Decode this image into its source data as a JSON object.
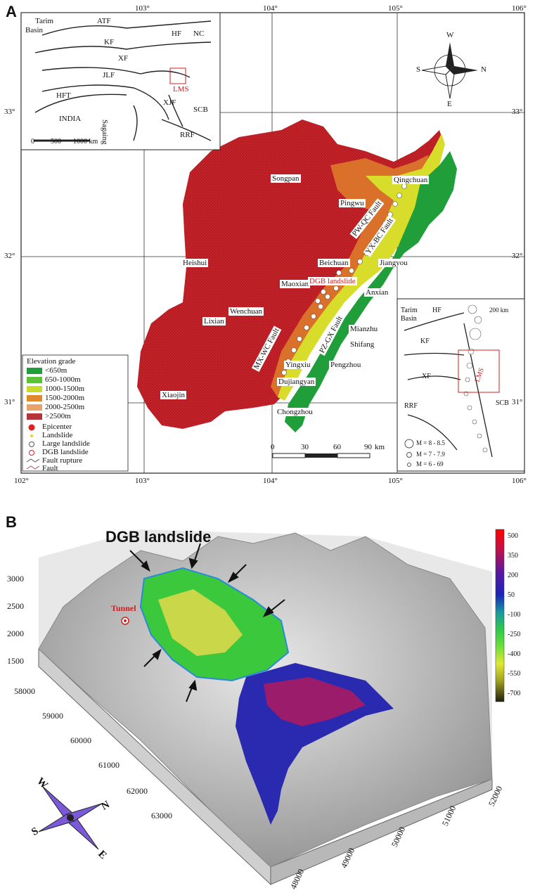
{
  "panel_a": {
    "letter": "A",
    "lon_labels_top": [
      "103°",
      "104°",
      "105°",
      "106°"
    ],
    "lon_labels_bottom": [
      "102°",
      "103°",
      "104°",
      "105°",
      "106°"
    ],
    "lat_labels_left": [
      "33°",
      "32°",
      "31°"
    ],
    "lat_labels_right": [
      "33°",
      "32°",
      "31°"
    ],
    "inset_tectonic": {
      "labels": {
        "tarim": "Tarim",
        "basin": "Basin",
        "atf": "ATF",
        "hf": "HF",
        "nc": "NC",
        "kf": "KF",
        "xf": "XF",
        "jlf": "JLF",
        "lms": "LMS",
        "hft": "HFT",
        "india": "INDIA",
        "sagaing": "Sagaing",
        "xjf": "XJF",
        "scb": "SCB",
        "rrf": "RRF"
      },
      "scale_ticks": [
        "0",
        "500",
        "1000 km"
      ]
    },
    "compass": {
      "top": "W",
      "left": "S",
      "right": "N",
      "bottom": "E"
    },
    "cities": {
      "songpan": "Songpan",
      "qingchuan": "Qingchuan",
      "pingwu": "Pingwu",
      "heishui": "Heishui",
      "beichuan": "Beichuan",
      "jiangyou": "Jiangyou",
      "maoxian": "Maoxian",
      "dgb": "DGB landslide",
      "anxian": "Anxian",
      "wenchuan": "Wenchuan",
      "lixian": "Lixian",
      "mianzhu": "Mianzhu",
      "shifang": "Shifang",
      "yingxiu": "Yingxiu",
      "pengzhou": "Pengzhou",
      "dujiangyan": "Dujiangyan",
      "xiaojin": "Xiaojin",
      "chongzhou": "Chongzhou"
    },
    "faults": {
      "pw_qc": "PW-QC Fault",
      "yx_bc": "YX-BC Fault",
      "pz_gx": "PZ-GX Fault",
      "mx_wc": "MX-WC Fault"
    },
    "legend": {
      "title": "Elevation grade",
      "grades": [
        {
          "label": "<650m",
          "color": "#1f9e3a"
        },
        {
          "label": "650-1000m",
          "color": "#5cc23a"
        },
        {
          "label": "1000-1500m",
          "color": "#c9dc2a"
        },
        {
          "label": "1500-2000m",
          "color": "#e0892c"
        },
        {
          "label": "2000-2500m",
          "color": "#e8a36a"
        },
        {
          "label": ">2500m",
          "color": "#b5343a"
        }
      ],
      "symbols": {
        "epicenter": "Epicenter",
        "landslide": "Landslide",
        "large_landslide": "Large landslide",
        "dgb": "DGB landslide",
        "fault_rupture": "Fault rupture",
        "fault": "Fault"
      }
    },
    "scale_bar": {
      "ticks": [
        "0",
        "30",
        "60",
        "90"
      ],
      "unit": "km"
    },
    "inset_eq": {
      "tarim": "Tarim",
      "basin": "Basin",
      "hf": "HF",
      "kf": "KF",
      "xf": "XF",
      "rrf": "RRF",
      "lms": "LMS",
      "scb": "SCB",
      "scale": "200 km",
      "magnitudes": [
        "M = 8 - 8.5",
        "M = 7 - 7.9",
        "M = 6 - 69"
      ]
    }
  },
  "panel_b": {
    "letter": "B",
    "title": "DGB landslide",
    "tunnel": "Tunnel",
    "z_ticks": [
      "3000",
      "2500",
      "2000",
      "1500"
    ],
    "y_ticks": [
      "58000",
      "59000",
      "60000",
      "61000",
      "62000",
      "63000"
    ],
    "x_ticks": [
      "48000",
      "49000",
      "50000",
      "51000",
      "52000"
    ],
    "colorbar": {
      "ticks": [
        "500",
        "350",
        "200",
        "50",
        "-100",
        "-250",
        "-400",
        "-550",
        "-700"
      ]
    },
    "compass": {
      "w": "W",
      "n": "N",
      "s": "S",
      "e": "E"
    }
  }
}
